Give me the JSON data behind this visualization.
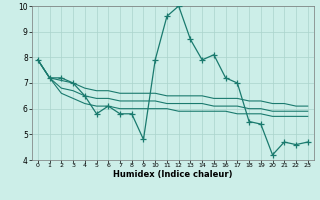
{
  "xlabel": "Humidex (Indice chaleur)",
  "x": [
    0,
    1,
    2,
    3,
    4,
    5,
    6,
    7,
    8,
    9,
    10,
    11,
    12,
    13,
    14,
    15,
    16,
    17,
    18,
    19,
    20,
    21,
    22,
    23
  ],
  "y_main": [
    7.9,
    7.2,
    7.2,
    7.0,
    6.5,
    5.8,
    6.1,
    5.8,
    5.8,
    4.8,
    7.9,
    9.6,
    10.0,
    8.7,
    7.9,
    8.1,
    7.2,
    7.0,
    5.5,
    5.4,
    4.2,
    4.7,
    4.6,
    4.7
  ],
  "y_upper": [
    7.9,
    7.2,
    7.1,
    7.0,
    6.8,
    6.7,
    6.7,
    6.6,
    6.6,
    6.6,
    6.6,
    6.5,
    6.5,
    6.5,
    6.5,
    6.4,
    6.4,
    6.4,
    6.3,
    6.3,
    6.2,
    6.2,
    6.1,
    6.1
  ],
  "y_lower": [
    7.9,
    7.2,
    6.6,
    6.4,
    6.2,
    6.1,
    6.1,
    6.0,
    6.0,
    6.0,
    6.0,
    6.0,
    5.9,
    5.9,
    5.9,
    5.9,
    5.9,
    5.8,
    5.8,
    5.8,
    5.7,
    5.7,
    5.7,
    5.7
  ],
  "y_mid": [
    7.9,
    7.2,
    6.8,
    6.7,
    6.5,
    6.4,
    6.4,
    6.3,
    6.3,
    6.3,
    6.3,
    6.2,
    6.2,
    6.2,
    6.2,
    6.1,
    6.1,
    6.1,
    6.0,
    6.0,
    5.9,
    5.9,
    5.9,
    5.9
  ],
  "ylim": [
    4,
    10
  ],
  "xlim": [
    -0.5,
    23.5
  ],
  "yticks": [
    4,
    5,
    6,
    7,
    8,
    9,
    10
  ],
  "xticks": [
    0,
    1,
    2,
    3,
    4,
    5,
    6,
    7,
    8,
    9,
    10,
    11,
    12,
    13,
    14,
    15,
    16,
    17,
    18,
    19,
    20,
    21,
    22,
    23
  ],
  "line_color": "#1a7a6e",
  "bg_color": "#cceee8",
  "grid_color": "#aad4cc",
  "marker": "+",
  "marker_size": 4,
  "lw_main": 0.9,
  "lw_env": 0.8
}
